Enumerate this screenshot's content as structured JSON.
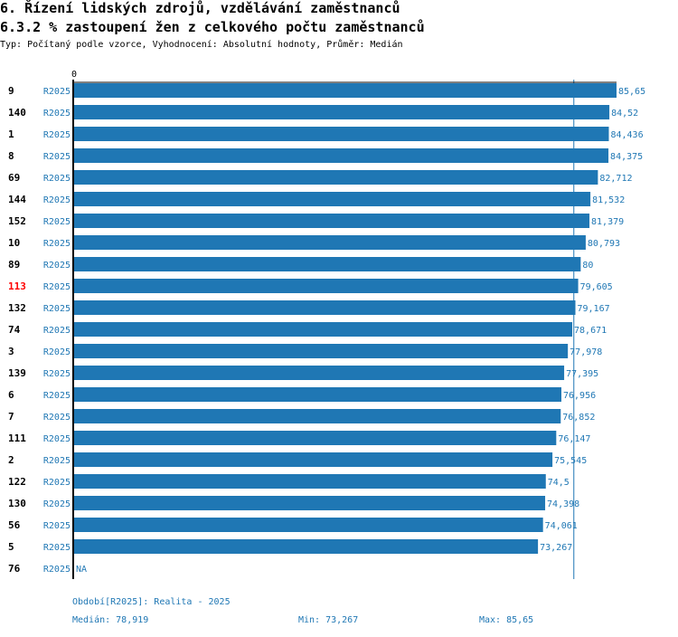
{
  "header": {
    "title": "6. Řízení lidských zdrojů, vzdělávání zaměstnanců",
    "subtitle": "6.3.2 % zastoupení žen z celkového počtu zaměstnanců",
    "info": "Typ: Počítaný podle vzorce, Vyhodnocení: Absolutní hodnoty, Průměr: Medián"
  },
  "chart_data": {
    "type": "bar",
    "orientation": "horizontal",
    "xlim": [
      0,
      85.65
    ],
    "x_tick": "0",
    "period": "R2025",
    "median": 78.919,
    "rows": [
      {
        "id": "9",
        "value": 85.65,
        "label": "85,65"
      },
      {
        "id": "140",
        "value": 84.52,
        "label": "84,52"
      },
      {
        "id": "1",
        "value": 84.436,
        "label": "84,436"
      },
      {
        "id": "8",
        "value": 84.375,
        "label": "84,375"
      },
      {
        "id": "69",
        "value": 82.712,
        "label": "82,712"
      },
      {
        "id": "144",
        "value": 81.532,
        "label": "81,532"
      },
      {
        "id": "152",
        "value": 81.379,
        "label": "81,379"
      },
      {
        "id": "10",
        "value": 80.793,
        "label": "80,793"
      },
      {
        "id": "89",
        "value": 80,
        "label": "80"
      },
      {
        "id": "113",
        "value": 79.605,
        "label": "79,605",
        "highlight": true
      },
      {
        "id": "132",
        "value": 79.167,
        "label": "79,167"
      },
      {
        "id": "74",
        "value": 78.671,
        "label": "78,671"
      },
      {
        "id": "3",
        "value": 77.978,
        "label": "77,978"
      },
      {
        "id": "139",
        "value": 77.395,
        "label": "77,395"
      },
      {
        "id": "6",
        "value": 76.956,
        "label": "76,956"
      },
      {
        "id": "7",
        "value": 76.852,
        "label": "76,852"
      },
      {
        "id": "111",
        "value": 76.147,
        "label": "76,147"
      },
      {
        "id": "2",
        "value": 75.545,
        "label": "75,545"
      },
      {
        "id": "122",
        "value": 74.5,
        "label": "74,5"
      },
      {
        "id": "130",
        "value": 74.398,
        "label": "74,398"
      },
      {
        "id": "56",
        "value": 74.061,
        "label": "74,061"
      },
      {
        "id": "5",
        "value": 73.267,
        "label": "73,267"
      },
      {
        "id": "76",
        "value": null,
        "label": "NA"
      }
    ]
  },
  "colors": {
    "bar": "#1f77b4",
    "highlight": "#ff0000"
  },
  "footer": {
    "period": "Období[R2025]: Realita - 2025",
    "median": "Medián: 78,919",
    "min": "Min: 73,267",
    "max": "Max: 85,65"
  }
}
